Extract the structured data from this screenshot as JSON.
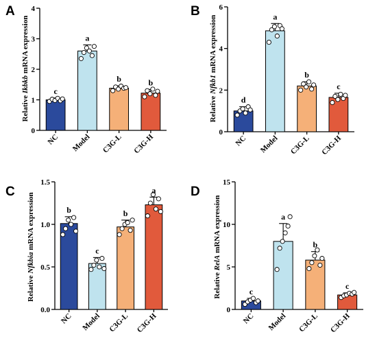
{
  "chart_data": [
    {
      "panel": "A",
      "type": "bar",
      "categories": [
        "NC",
        "Model",
        "C3G-L",
        "C3G-H"
      ],
      "ylabel": {
        "prefix": "Relative ",
        "gene": "Ikbkb",
        "suffix": " mRNA expression"
      },
      "ylim": [
        0,
        4
      ],
      "yticks": [
        "0",
        "1",
        "2",
        "3",
        "4"
      ],
      "values": [
        1.0,
        2.6,
        1.38,
        1.22
      ],
      "errors": [
        0.06,
        0.2,
        0.08,
        0.12
      ],
      "significance": [
        "c",
        "a",
        "b",
        "b"
      ],
      "points": [
        [
          0.95,
          1.02,
          0.98,
          1.05,
          0.97,
          1.03
        ],
        [
          2.35,
          2.55,
          2.7,
          2.6,
          2.45,
          2.75
        ],
        [
          1.3,
          1.42,
          1.35,
          1.45,
          1.38,
          1.4
        ],
        [
          1.1,
          1.3,
          1.2,
          1.35,
          1.15,
          1.28
        ]
      ]
    },
    {
      "panel": "B",
      "type": "bar",
      "categories": [
        "NC",
        "Model",
        "C3G-L",
        "C3G-H"
      ],
      "ylabel": {
        "prefix": "Relative ",
        "gene": "Nfkb1",
        "suffix": " mRNA expression"
      },
      "ylim": [
        0,
        6
      ],
      "yticks": [
        "0",
        "2",
        "4",
        "6"
      ],
      "values": [
        1.0,
        4.85,
        2.2,
        1.65
      ],
      "errors": [
        0.2,
        0.35,
        0.2,
        0.2
      ],
      "significance": [
        "d",
        "a",
        "b",
        "c"
      ],
      "points": [
        [
          0.8,
          1.0,
          1.1,
          0.9,
          1.2,
          1.05
        ],
        [
          4.3,
          4.9,
          5.05,
          4.6,
          5.1,
          4.95
        ],
        [
          2.0,
          2.3,
          2.15,
          2.4,
          2.05,
          2.25
        ],
        [
          1.4,
          1.7,
          1.55,
          1.8,
          1.6,
          1.75
        ]
      ]
    },
    {
      "panel": "C",
      "type": "bar",
      "categories": [
        "NC",
        "Model",
        "C3G-L",
        "C3G-H"
      ],
      "ylabel": {
        "prefix": "Relative ",
        "gene": "Nfkbia",
        "suffix": " mRNA expression"
      },
      "ylim": [
        0,
        1.5
      ],
      "yticks": [
        "0.0",
        "0.5",
        "1.0",
        "1.5"
      ],
      "values": [
        1.01,
        0.54,
        0.97,
        1.23
      ],
      "errors": [
        0.08,
        0.07,
        0.08,
        0.09
      ],
      "significance": [
        "b",
        "c",
        "b",
        "a"
      ],
      "points": [
        [
          0.88,
          0.95,
          1.05,
          1.0,
          1.08,
          0.92
        ],
        [
          0.47,
          0.52,
          0.58,
          0.5,
          0.6,
          0.48
        ],
        [
          0.88,
          0.95,
          1.0,
          1.02,
          0.93,
          1.05
        ],
        [
          1.1,
          1.25,
          1.35,
          1.18,
          1.3,
          1.15
        ]
      ]
    },
    {
      "panel": "D",
      "type": "bar",
      "categories": [
        "NC",
        "Model",
        "C3G-L",
        "C3G-H"
      ],
      "ylabel": {
        "prefix": "Relative ",
        "gene": "RelA",
        "suffix": " mRNA expression"
      },
      "ylim": [
        0,
        15
      ],
      "yticks": [
        "0",
        "5",
        "10",
        "15"
      ],
      "values": [
        1.0,
        8.0,
        5.8,
        1.7
      ],
      "errors": [
        0.3,
        2.1,
        1.0,
        0.25
      ],
      "significance": [
        "c",
        "a",
        "b",
        "c"
      ],
      "points": [
        [
          0.6,
          0.9,
          1.1,
          1.3,
          0.8,
          1.0
        ],
        [
          4.7,
          7.2,
          8.0,
          9.0,
          9.8,
          10.9
        ],
        [
          4.8,
          5.5,
          6.3,
          7.0,
          5.2,
          6.0
        ],
        [
          1.4,
          1.6,
          1.7,
          1.9,
          1.8,
          2.0
        ]
      ]
    }
  ],
  "colors": {
    "NC": "#2b4a9c",
    "Model": "#bfe3ee",
    "C3G-L": "#f5b078",
    "C3G-H": "#e15a3c"
  }
}
